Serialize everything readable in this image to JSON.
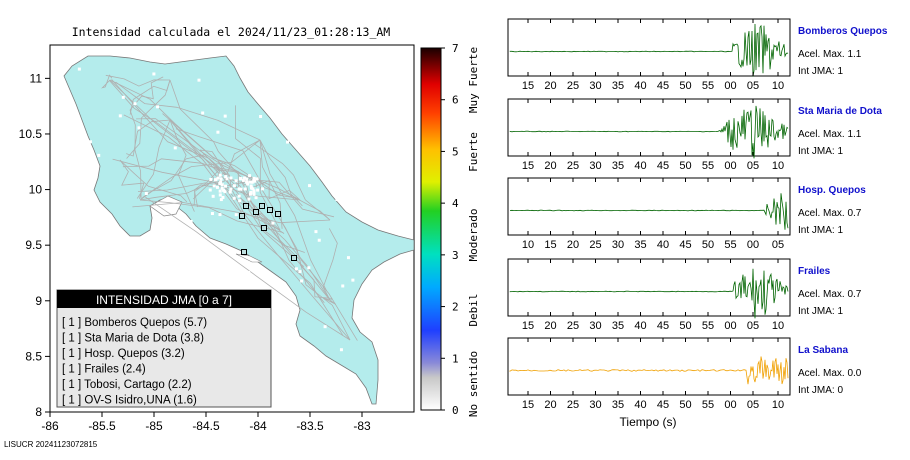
{
  "map": {
    "title": "Intensidad calculada el 2024/11/23_01:28:13_AM",
    "lon_ticks": [
      "-86",
      "-85.5",
      "-85",
      "-84.5",
      "-84",
      "-83.5",
      "-83"
    ],
    "lat_ticks": [
      "11",
      "10.5",
      "10",
      "9.5",
      "9",
      "8.5",
      "8"
    ],
    "footer": "LISUCR 20241123072815",
    "land_color": "#b4ecec",
    "legend": {
      "title": "INTENSIDAD JMA [0 a 7]",
      "items": [
        "[ 1 ]  Bomberos Quepos (5.7)",
        "[ 1 ]  Sta Maria de Dota (3.8)",
        "[ 1 ]  Hosp. Quepos (3.2)",
        "[ 1 ]  Frailes (2.4)",
        "[ 1 ]  Tobosi, Cartago (2.2)",
        "[ 1 ]  OV-S Isidro,UNA (1.6)"
      ]
    },
    "colorbar": {
      "ticks": [
        "0",
        "1",
        "2",
        "3",
        "4",
        "5",
        "6",
        "7"
      ],
      "zones": [
        "No sentido",
        "Debil",
        "Moderado",
        "Fuerte",
        "Muy Fuerte"
      ]
    }
  },
  "chart_data": [
    {
      "type": "line",
      "station": "Bomberos Quepos",
      "accel_label": "Acel. Max. 1.1",
      "int_label": "Int JMA: 1",
      "x_ticks": [
        "15",
        "20",
        "25",
        "30",
        "35",
        "40",
        "45",
        "50",
        "55",
        "00",
        "05",
        "10"
      ],
      "color": "#006400"
    },
    {
      "type": "line",
      "station": "Sta Maria de Dota",
      "accel_label": "Acel. Max. 1.1",
      "int_label": "Int JMA: 1",
      "x_ticks": [
        "15",
        "20",
        "25",
        "30",
        "35",
        "40",
        "45",
        "50",
        "55",
        "00",
        "05",
        "10"
      ],
      "color": "#006400"
    },
    {
      "type": "line",
      "station": "Hosp. Quepos",
      "accel_label": "Acel. Max. 0.7",
      "int_label": "Int JMA: 1",
      "x_ticks": [
        "10",
        "15",
        "20",
        "25",
        "30",
        "35",
        "40",
        "45",
        "50",
        "55",
        "00",
        "05"
      ],
      "color": "#006400"
    },
    {
      "type": "line",
      "station": "Frailes",
      "accel_label": "Acel. Max. 0.7",
      "int_label": "Int JMA: 1",
      "x_ticks": [
        "15",
        "20",
        "25",
        "30",
        "35",
        "40",
        "45",
        "50",
        "55",
        "00",
        "05",
        "10"
      ],
      "color": "#006400"
    },
    {
      "type": "line",
      "station": "La Sabana",
      "accel_label": "Acel. Max. 0.0",
      "int_label": "Int JMA: 0",
      "x_ticks": [
        "15",
        "20",
        "25",
        "30",
        "35",
        "40",
        "45",
        "50",
        "55",
        "00",
        "05",
        "10"
      ],
      "color": "#f0a000"
    }
  ],
  "waveforms": {
    "xlabel": "Tiempo (s)"
  }
}
